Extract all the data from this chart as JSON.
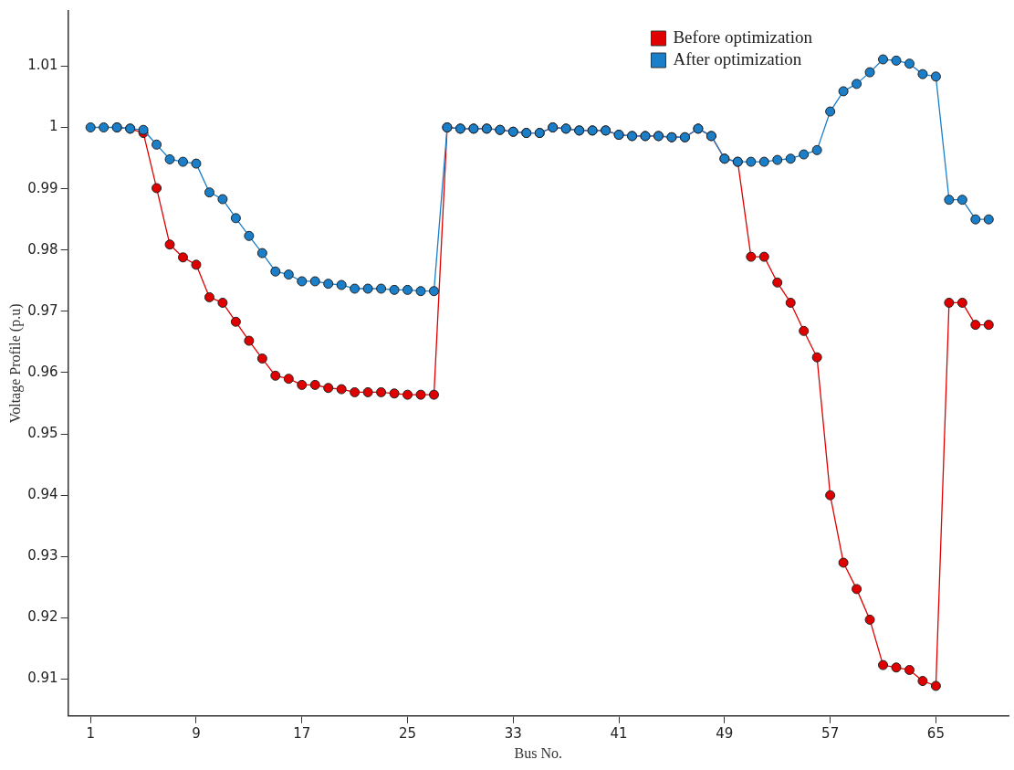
{
  "chart_data": {
    "type": "line",
    "xlabel": "Bus No.",
    "ylabel": "Voltage Profile (p.u)",
    "x": [
      1,
      2,
      3,
      4,
      5,
      6,
      7,
      8,
      9,
      10,
      11,
      12,
      13,
      14,
      15,
      16,
      17,
      18,
      19,
      20,
      21,
      22,
      23,
      24,
      25,
      26,
      27,
      28,
      29,
      30,
      31,
      32,
      33,
      34,
      35,
      36,
      37,
      38,
      39,
      40,
      41,
      42,
      43,
      44,
      45,
      46,
      47,
      48,
      49,
      50,
      51,
      52,
      53,
      54,
      55,
      56,
      57,
      58,
      59,
      60,
      61,
      62,
      63,
      64,
      65,
      66,
      67,
      68,
      69
    ],
    "series": [
      {
        "name": "Before optimization",
        "color": "#e00000",
        "values": [
          null,
          null,
          1.0,
          0.9998,
          0.9991,
          0.9901,
          0.9809,
          0.9788,
          0.9776,
          0.9723,
          0.9714,
          0.9683,
          0.9652,
          0.9623,
          0.9595,
          0.959,
          0.958,
          0.958,
          0.9575,
          0.9573,
          0.9568,
          0.9568,
          0.9568,
          0.9566,
          0.9564,
          0.9564,
          0.9564,
          1.0,
          0.9998,
          0.9998,
          0.9998,
          0.9996,
          0.9993,
          0.9991,
          0.9991,
          1.0,
          0.9998,
          0.9995,
          0.9995,
          0.9995,
          0.9988,
          0.9986,
          0.9986,
          0.9986,
          0.9984,
          0.9984,
          0.9998,
          0.9986,
          0.9949,
          0.9944,
          0.9789,
          0.9789,
          0.9747,
          0.9714,
          0.9668,
          0.9625,
          0.94,
          0.929,
          0.9247,
          0.9197,
          0.9123,
          0.9119,
          0.9115,
          0.9097,
          0.9089,
          0.9714,
          0.9714,
          0.9678,
          0.9678
        ]
      },
      {
        "name": "After optimization",
        "color": "#1a7fc8",
        "values": [
          1.0,
          1.0,
          1.0,
          0.9998,
          0.9996,
          0.9972,
          0.9948,
          0.9944,
          0.9941,
          0.9894,
          0.9883,
          0.9852,
          0.9823,
          0.9795,
          0.9765,
          0.976,
          0.9749,
          0.9749,
          0.9745,
          0.9743,
          0.9737,
          0.9737,
          0.9737,
          0.9735,
          0.9735,
          0.9733,
          0.9733,
          1.0,
          0.9998,
          0.9998,
          0.9998,
          0.9996,
          0.9993,
          0.9991,
          0.9991,
          1.0,
          0.9998,
          0.9995,
          0.9995,
          0.9995,
          0.9988,
          0.9986,
          0.9986,
          0.9986,
          0.9984,
          0.9984,
          0.9998,
          0.9986,
          0.9949,
          0.9944,
          0.9944,
          0.9944,
          0.9947,
          0.9949,
          0.9956,
          0.9963,
          1.0026,
          1.0059,
          1.0071,
          1.009,
          1.0111,
          1.0109,
          1.0104,
          1.0087,
          1.0083,
          0.9882,
          0.9882,
          0.985,
          0.985
        ]
      }
    ],
    "xlim": [
      -0.7,
      70.5
    ],
    "xticks": [
      1,
      9,
      17,
      25,
      33,
      41,
      49,
      57,
      65
    ],
    "ylim": [
      0.904,
      1.019
    ],
    "yticks": [
      0.91,
      0.92,
      0.93,
      0.94,
      0.95,
      0.96,
      0.97,
      0.98,
      0.99,
      1,
      1.01
    ],
    "grid": false,
    "legend": "top right",
    "marker": "circle",
    "line_style": "solid"
  }
}
